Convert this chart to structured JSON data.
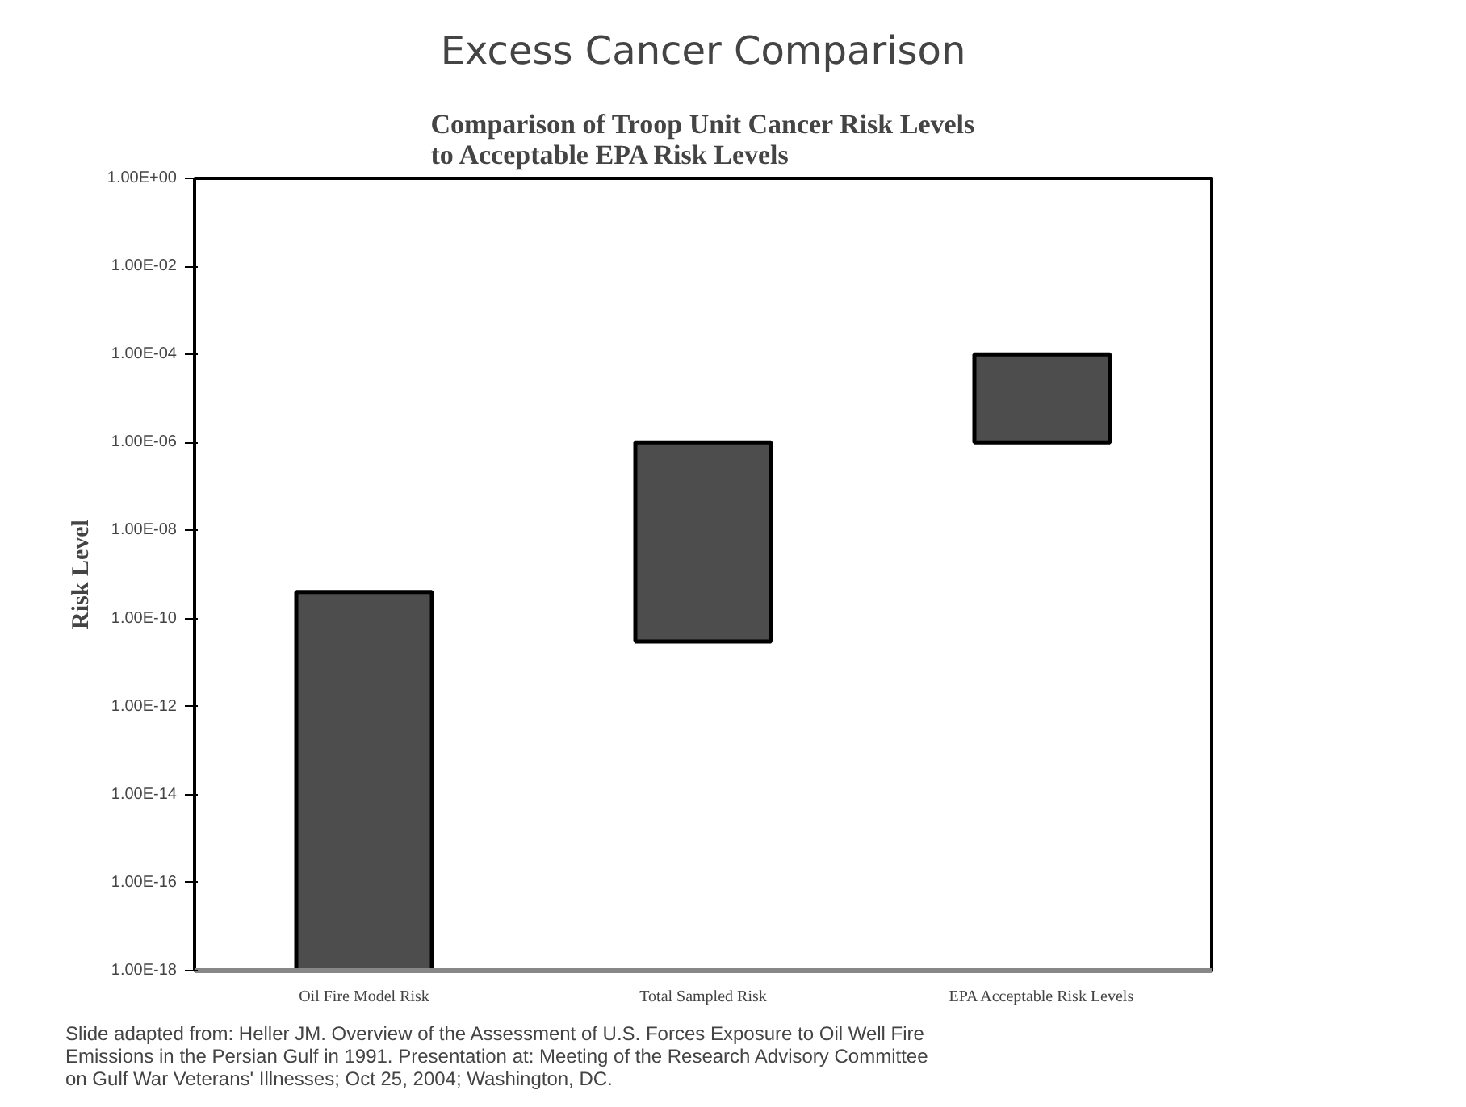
{
  "chart_data": {
    "type": "bar",
    "title": "Excess Cancer Comparison",
    "subtitle": "Comparison of Troop Unit Cancer Risk Levels to Acceptable EPA Risk Levels",
    "ylabel": "Risk Level",
    "categories": [
      "Oil Fire Model Risk",
      "Total Sampled Risk",
      "EPA Acceptable Risk Levels"
    ],
    "base": [
      1e-18,
      3e-11,
      1e-06
    ],
    "values": [
      4e-10,
      1e-06,
      9.9e-05
    ],
    "color": "#4d4d4d",
    "log": "y",
    "ylim": [
      1e-18,
      1
    ],
    "yticks": [
      {
        "value": 1,
        "label": "1.00E+00"
      },
      {
        "value": 0.01,
        "label": "1.00E-02"
      },
      {
        "value": 0.0001,
        "label": "1.00E-04"
      },
      {
        "value": 1e-06,
        "label": "1.00E-06"
      },
      {
        "value": 1e-08,
        "label": "1.00E-08"
      },
      {
        "value": 1e-10,
        "label": "1.00E-10"
      },
      {
        "value": 1e-12,
        "label": "1.00E-12"
      },
      {
        "value": 1e-14,
        "label": "1.00E-14"
      },
      {
        "value": 1e-16,
        "label": "1.00E-16"
      },
      {
        "value": 1e-18,
        "label": "1.00E-18"
      }
    ],
    "grid": false,
    "annotations": [
      "Slide adapted from:  Heller JM.  Overview of the Assessment of U.S. Forces Exposure to Oil Well Fire Emissions in the Persian Gulf in 1991.  Presentation at: Meeting of the Research Advisory Committee on Gulf War Veterans' Illnesses; Oct 25, 2004; Washington, DC."
    ]
  }
}
